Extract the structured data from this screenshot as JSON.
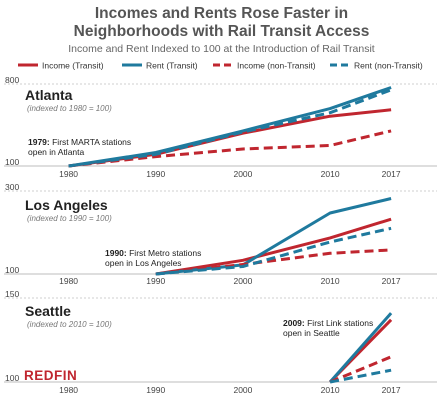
{
  "title_line1": "Incomes and Rents Rose Faster in",
  "title_line2": "Neighborhoods with Rail Transit Access",
  "subtitle": "Income and Rent Indexed to 100 at the Introduction of Rail Transit",
  "legend": [
    {
      "label": "Income (Transit)",
      "color": "#c0262f",
      "dash": false
    },
    {
      "label": "Rent (Transit)",
      "color": "#1f7a9e",
      "dash": false
    },
    {
      "label": "Income (non-Transit)",
      "color": "#c0262f",
      "dash": true
    },
    {
      "label": "Rent (non-Transit)",
      "color": "#1f7a9e",
      "dash": true
    }
  ],
  "logo": "REDFIN",
  "chart_data": [
    {
      "type": "line",
      "title": "Atlanta",
      "subtitle": "(indexed to 1980 = 100)",
      "annotation_bold": "1979:",
      "annotation_line1": "First MARTA stations",
      "annotation_line2": "open in Atlanta",
      "x": [
        1980,
        1990,
        2000,
        2010,
        2017
      ],
      "ylim": [
        100,
        800
      ],
      "y_ticks": [
        100,
        800
      ],
      "series": [
        {
          "name": "Income (Transit)",
          "color": "#c0262f",
          "dash": false,
          "values": [
            100,
            200,
            380,
            525,
            580
          ]
        },
        {
          "name": "Rent (Transit)",
          "color": "#1f7a9e",
          "dash": false,
          "values": [
            100,
            215,
            400,
            590,
            770
          ]
        },
        {
          "name": "Income (non-Transit)",
          "color": "#c0262f",
          "dash": true,
          "values": [
            100,
            180,
            245,
            275,
            400
          ]
        },
        {
          "name": "Rent (non-Transit)",
          "color": "#1f7a9e",
          "dash": true,
          "values": [
            100,
            200,
            390,
            555,
            750
          ]
        }
      ]
    },
    {
      "type": "line",
      "title": "Los Angeles",
      "subtitle": "(indexed to 1990 = 100)",
      "annotation_bold": "1990:",
      "annotation_line1": "First Metro stations",
      "annotation_line2": "open in Los Angeles",
      "x": [
        1990,
        2000,
        2010,
        2017
      ],
      "ylim": [
        100,
        300
      ],
      "y_ticks": [
        100,
        300
      ],
      "series": [
        {
          "name": "Income (Transit)",
          "color": "#c0262f",
          "dash": false,
          "values": [
            100,
            133,
            187,
            232
          ]
        },
        {
          "name": "Rent (Transit)",
          "color": "#1f7a9e",
          "dash": false,
          "values": [
            100,
            122,
            247,
            282
          ]
        },
        {
          "name": "Income (non-Transit)",
          "color": "#c0262f",
          "dash": true,
          "values": [
            100,
            123,
            150,
            158
          ]
        },
        {
          "name": "Rent (non-Transit)",
          "color": "#1f7a9e",
          "dash": true,
          "values": [
            100,
            118,
            177,
            210
          ]
        }
      ]
    },
    {
      "type": "line",
      "title": "Seattle",
      "subtitle": "(indexed to 2010 = 100)",
      "annotation_bold": "2009:",
      "annotation_line1": "First Link stations",
      "annotation_line2": "open in Seattle",
      "x": [
        2010,
        2017
      ],
      "ylim": [
        100,
        150
      ],
      "y_ticks": [
        100,
        150
      ],
      "series": [
        {
          "name": "Income (Transit)",
          "color": "#c0262f",
          "dash": false,
          "values": [
            100,
            137
          ]
        },
        {
          "name": "Rent (Transit)",
          "color": "#1f7a9e",
          "dash": false,
          "values": [
            100,
            141
          ]
        },
        {
          "name": "Income (non-Transit)",
          "color": "#c0262f",
          "dash": true,
          "values": [
            100,
            115
          ]
        },
        {
          "name": "Rent (non-Transit)",
          "color": "#1f7a9e",
          "dash": true,
          "values": [
            100,
            107
          ]
        }
      ]
    }
  ],
  "x_axis": [
    1980,
    1990,
    2000,
    2010,
    2017
  ]
}
